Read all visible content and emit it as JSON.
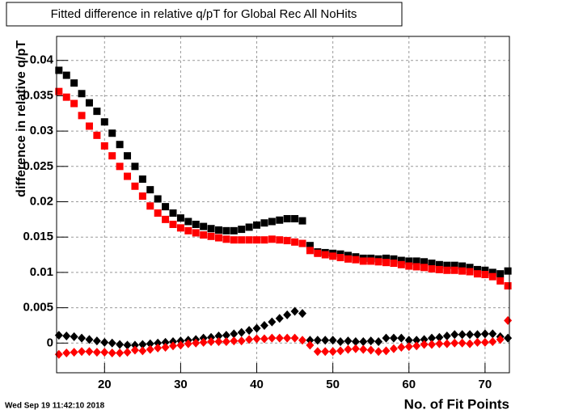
{
  "chart_data": {
    "type": "scatter",
    "title": "Fitted difference in relative q/pT for Global Rec All NoHits",
    "x_label": "No. of Fit Points",
    "y_label": "difference in relative q/pT",
    "timestamp": "Wed Sep 19 11:42:10 2018",
    "xlim": [
      13.7,
      73.2
    ],
    "ylim": [
      -0.0042,
      0.0434
    ],
    "xticks": [
      20,
      30,
      40,
      50,
      60,
      70
    ],
    "yticks": [
      0,
      0.005,
      0.01,
      0.015,
      0.02,
      0.025,
      0.03,
      0.035,
      0.04
    ],
    "grid": true,
    "x": [
      14,
      15,
      16,
      17,
      18,
      19,
      20,
      21,
      22,
      23,
      24,
      25,
      26,
      27,
      28,
      29,
      30,
      31,
      32,
      33,
      34,
      35,
      36,
      37,
      38,
      39,
      40,
      41,
      42,
      43,
      44,
      45,
      46,
      47,
      48,
      49,
      50,
      51,
      52,
      53,
      54,
      55,
      56,
      57,
      58,
      59,
      60,
      61,
      62,
      63,
      64,
      65,
      66,
      67,
      68,
      69,
      70,
      71,
      72,
      73
    ],
    "series": [
      {
        "color": "#000000",
        "marker": "square",
        "values": [
          0.0386,
          0.0379,
          0.0368,
          0.0353,
          0.034,
          0.0328,
          0.0313,
          0.0297,
          0.0281,
          0.0265,
          0.025,
          0.0232,
          0.0217,
          0.0204,
          0.0193,
          0.0184,
          0.0177,
          0.0172,
          0.0168,
          0.0165,
          0.0162,
          0.016,
          0.0159,
          0.0159,
          0.0161,
          0.0164,
          0.0167,
          0.017,
          0.0172,
          0.0174,
          0.0176,
          0.0176,
          0.0173,
          0.0138,
          0.0129,
          0.0128,
          0.0127,
          0.0126,
          0.0124,
          0.0122,
          0.012,
          0.012,
          0.0119,
          0.012,
          0.0119,
          0.0117,
          0.0116,
          0.0116,
          0.0115,
          0.0113,
          0.0111,
          0.011,
          0.011,
          0.0109,
          0.0107,
          0.0104,
          0.0103,
          0.01,
          0.0098,
          0.0102
        ]
      },
      {
        "color": "#ff0000",
        "marker": "square",
        "values": [
          0.0356,
          0.0348,
          0.0339,
          0.0322,
          0.0307,
          0.0294,
          0.0279,
          0.0265,
          0.025,
          0.0236,
          0.0222,
          0.0208,
          0.0194,
          0.0184,
          0.0175,
          0.0168,
          0.0163,
          0.0159,
          0.0156,
          0.0153,
          0.0151,
          0.0149,
          0.0147,
          0.0146,
          0.0146,
          0.0146,
          0.0146,
          0.0146,
          0.0147,
          0.0146,
          0.0145,
          0.0143,
          0.0141,
          0.0131,
          0.0127,
          0.0125,
          0.0123,
          0.0121,
          0.0119,
          0.0118,
          0.0116,
          0.0116,
          0.0115,
          0.0114,
          0.0113,
          0.0111,
          0.0109,
          0.0108,
          0.0107,
          0.0105,
          0.0104,
          0.0103,
          0.0103,
          0.0102,
          0.0101,
          0.0098,
          0.0097,
          0.0094,
          0.0088,
          0.0081
        ]
      },
      {
        "color": "#000000",
        "marker": "diamond",
        "values": [
          0.0011,
          0.001,
          0.0009,
          0.0007,
          0.0005,
          0.0003,
          0.0001,
          0,
          -0.0002,
          -0.0003,
          -0.0003,
          -0.0002,
          -0.0001,
          0,
          0.0001,
          0.0002,
          0.0003,
          0.0004,
          0.0005,
          0.0007,
          0.0008,
          0.001,
          0.0011,
          0.0013,
          0.0015,
          0.0018,
          0.0021,
          0.0025,
          0.003,
          0.0035,
          0.004,
          0.0045,
          0.0042,
          0.0004,
          0.0004,
          0.0004,
          0.0004,
          0.0002,
          0.0003,
          0.0002,
          0.0002,
          0.0003,
          0.0002,
          0.0007,
          0.0007,
          0.0007,
          0.0004,
          0.0004,
          0.0005,
          0.0007,
          0.0008,
          0.001,
          0.0012,
          0.0012,
          0.0012,
          0.0012,
          0.0013,
          0.0013,
          0.0009,
          0.0007
        ]
      },
      {
        "color": "#ff0000",
        "marker": "diamond",
        "values": [
          -0.0016,
          -0.0014,
          -0.0013,
          -0.0012,
          -0.0012,
          -0.0013,
          -0.0013,
          -0.0014,
          -0.0014,
          -0.0013,
          -0.001,
          -0.0011,
          -0.0009,
          -0.0007,
          -0.0006,
          -0.0004,
          -0.0003,
          -0.0001,
          0,
          0.0001,
          0.0002,
          0.0002,
          0.0002,
          0.0003,
          0.0003,
          0.0005,
          0.0006,
          0.0006,
          0.0007,
          0.0007,
          0.0007,
          0.0007,
          0.0004,
          -0.0003,
          -0.0012,
          -0.0012,
          -0.0012,
          -0.0011,
          -0.0009,
          -0.0008,
          -0.0009,
          -0.001,
          -0.0012,
          -0.0011,
          -0.0008,
          -0.0006,
          -0.0005,
          -0.0004,
          -0.0002,
          -0.0002,
          -0.0001,
          -0.0001,
          0,
          0,
          -0.0001,
          0.0001,
          0.0001,
          0.0002,
          0.0005,
          0.0032
        ]
      }
    ]
  }
}
